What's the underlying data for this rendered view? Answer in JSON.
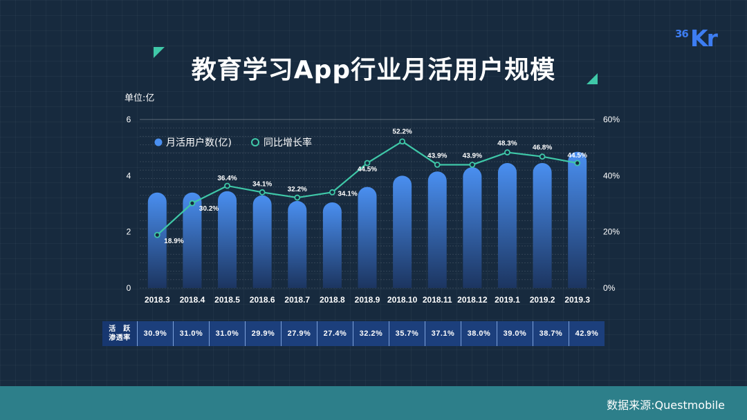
{
  "title": "教育学习App行业月活用户规模",
  "logo": {
    "num": "36",
    "letters": "Kr"
  },
  "unit_label": "单位:亿",
  "footer": {
    "source": "数据来源:Questmobile"
  },
  "colors": {
    "background": "#172a3e",
    "bar_top": "#4a8ff0",
    "bar_bottom": "#1c3560",
    "line": "#3fc8a8",
    "footer": "#2d7f8a",
    "table_cell": "#1c3f7c",
    "accent": "#3fc8a8"
  },
  "chart_data": {
    "type": "bar",
    "categories": [
      "2018.3",
      "2018.4",
      "2018.5",
      "2018.6",
      "2018.7",
      "2018.8",
      "2018.9",
      "2018.10",
      "2018.11",
      "2018.12",
      "2019.1",
      "2019.2",
      "2019.3"
    ],
    "series": [
      {
        "name": "月活用户数(亿)",
        "type": "bar",
        "axis": "left",
        "values": [
          3.4,
          3.4,
          3.45,
          3.3,
          3.1,
          3.05,
          3.6,
          4.0,
          4.15,
          4.3,
          4.45,
          4.45,
          4.85
        ]
      },
      {
        "name": "同比增长率",
        "type": "line",
        "axis": "right",
        "unit": "%",
        "values": [
          18.9,
          30.2,
          36.4,
          34.1,
          32.2,
          34.1,
          44.5,
          52.2,
          43.9,
          43.9,
          48.3,
          46.8,
          44.5
        ],
        "labels": [
          "18.9%",
          "30.2%",
          "36.4%",
          "34.1%",
          "32.2%",
          "34.1%",
          "44.5%",
          "52.2%",
          "43.9%",
          "43.9%",
          "48.3%",
          "46.8%",
          "44.5%"
        ]
      }
    ],
    "y_left": {
      "ticks": [
        "0",
        "2",
        "4",
        "6"
      ],
      "lim": [
        0,
        6
      ]
    },
    "y_right": {
      "ticks": [
        "0%",
        "20%",
        "40%",
        "60%"
      ],
      "lim": [
        0,
        60
      ]
    },
    "legend_position": "top-left",
    "grid": true
  },
  "penetration": {
    "header": [
      "活　跃",
      "渗透率"
    ],
    "values": [
      "30.9%",
      "31.0%",
      "31.0%",
      "29.9%",
      "27.9%",
      "27.4%",
      "32.2%",
      "35.7%",
      "37.1%",
      "38.0%",
      "39.0%",
      "38.7%",
      "42.9%"
    ]
  }
}
